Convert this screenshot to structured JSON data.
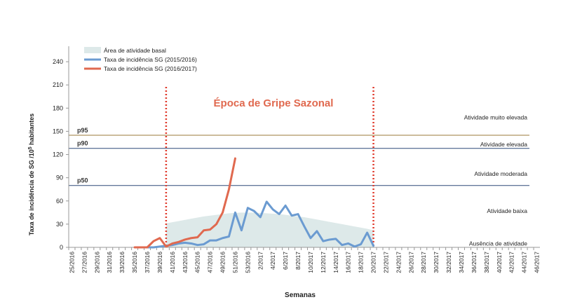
{
  "chart_data": {
    "type": "line",
    "title": "Época de Gripe Sazonal",
    "xlabel": "Semanas",
    "ylabel_main": "Taxa de incidência de SG /10",
    "ylabel_sup": "5",
    "ylabel_tail": " habitantes",
    "ylim": [
      0,
      260
    ],
    "yticks": [
      0,
      30,
      60,
      90,
      120,
      150,
      180,
      210,
      240
    ],
    "xticks": [
      "25/2016",
      "27/2016",
      "29/2016",
      "31/2016",
      "33/2016",
      "35/2016",
      "37/2016",
      "39/2016",
      "41/2016",
      "43/2016",
      "45/2016",
      "47/2016",
      "49/2016",
      "51/2016",
      "53/2016",
      "2/2017",
      "4/2017",
      "6/2017",
      "8/2017",
      "10/2017",
      "12/2017",
      "14/2017",
      "16/2017",
      "18/2017",
      "20/2017",
      "22/2017",
      "24/2017",
      "26/2017",
      "28/2017",
      "30/2017",
      "32/2017",
      "34/2017",
      "36/2017",
      "38/2017",
      "40/2017",
      "42/2017",
      "44/2017",
      "46/2017"
    ],
    "legend": {
      "placement": "top-left",
      "items": [
        {
          "label": "Área de atividade basal",
          "kind": "area",
          "color": "#dde9e9"
        },
        {
          "label": "Taxa de incidência SG (2015/2016)",
          "kind": "line",
          "color": "#6b9bd1"
        },
        {
          "label": "Taxa de incidência SG (2016/2017)",
          "kind": "line",
          "color": "#e0694f"
        }
      ]
    },
    "thresholds": [
      {
        "label": "p95",
        "value": 145,
        "color": "#9a7a3a"
      },
      {
        "label": "p90",
        "value": 128,
        "color": "#2e4a78"
      },
      {
        "label": "p50",
        "value": 80,
        "color": "#2e4a78"
      }
    ],
    "activity_levels": [
      {
        "label": "Atividade muito elevada",
        "value": 168
      },
      {
        "label": "Atividade elevada",
        "value": 133
      },
      {
        "label": "Atividade moderada",
        "value": 95
      },
      {
        "label": "Atividade baixa",
        "value": 47
      },
      {
        "label": "Ausência de atividade",
        "value": 5
      }
    ],
    "season_markers": [
      "40/2016",
      "20/2017"
    ],
    "baseline_area": {
      "x": [
        "40/2016",
        "42/2016",
        "44/2016",
        "46/2016",
        "48/2016",
        "50/2016",
        "52/2016",
        "1/2017",
        "3/2017",
        "5/2017",
        "7/2017",
        "9/2017",
        "11/2017",
        "13/2017",
        "15/2017",
        "17/2017",
        "19/2017",
        "20/2017"
      ],
      "values": [
        31,
        34,
        37,
        40,
        42,
        44,
        45,
        45,
        44,
        43,
        41,
        39,
        36,
        33,
        30,
        27,
        24,
        22
      ]
    },
    "series": [
      {
        "name": "Taxa de incidência SG (2015/2016)",
        "x": [
          "36/2016",
          "37/2016",
          "38/2016",
          "39/2016",
          "40/2016",
          "41/2016",
          "42/2016",
          "43/2016",
          "44/2016",
          "45/2016",
          "46/2016",
          "47/2016",
          "48/2016",
          "49/2016",
          "50/2016",
          "51/2016",
          "52/2016",
          "53/2016",
          "1/2017",
          "2/2017",
          "3/2017",
          "4/2017",
          "5/2017",
          "6/2017",
          "7/2017",
          "8/2017",
          "9/2017",
          "10/2017",
          "11/2017",
          "12/2017",
          "13/2017",
          "14/2017",
          "15/2017",
          "16/2017",
          "17/2017",
          "18/2017",
          "19/2017",
          "20/2017"
        ],
        "values": [
          0,
          0,
          0,
          1,
          2,
          3,
          5,
          6,
          5,
          3,
          4,
          9,
          9,
          12,
          14,
          45,
          22,
          51,
          47,
          39,
          59,
          49,
          43,
          54,
          41,
          43,
          27,
          12,
          21,
          8,
          10,
          11,
          3,
          5,
          1,
          4,
          19,
          2
        ]
      },
      {
        "name": "Taxa de incidência SG (2016/2017)",
        "x": [
          "35/2016",
          "36/2016",
          "37/2016",
          "38/2016",
          "39/2016",
          "40/2016",
          "41/2016",
          "42/2016",
          "43/2016",
          "44/2016",
          "45/2016",
          "46/2016",
          "47/2016",
          "48/2016",
          "49/2016",
          "50/2016",
          "51/2016"
        ],
        "values": [
          0,
          0,
          0,
          8,
          12,
          1,
          5,
          7,
          10,
          12,
          13,
          22,
          23,
          30,
          45,
          75,
          115
        ]
      }
    ]
  }
}
